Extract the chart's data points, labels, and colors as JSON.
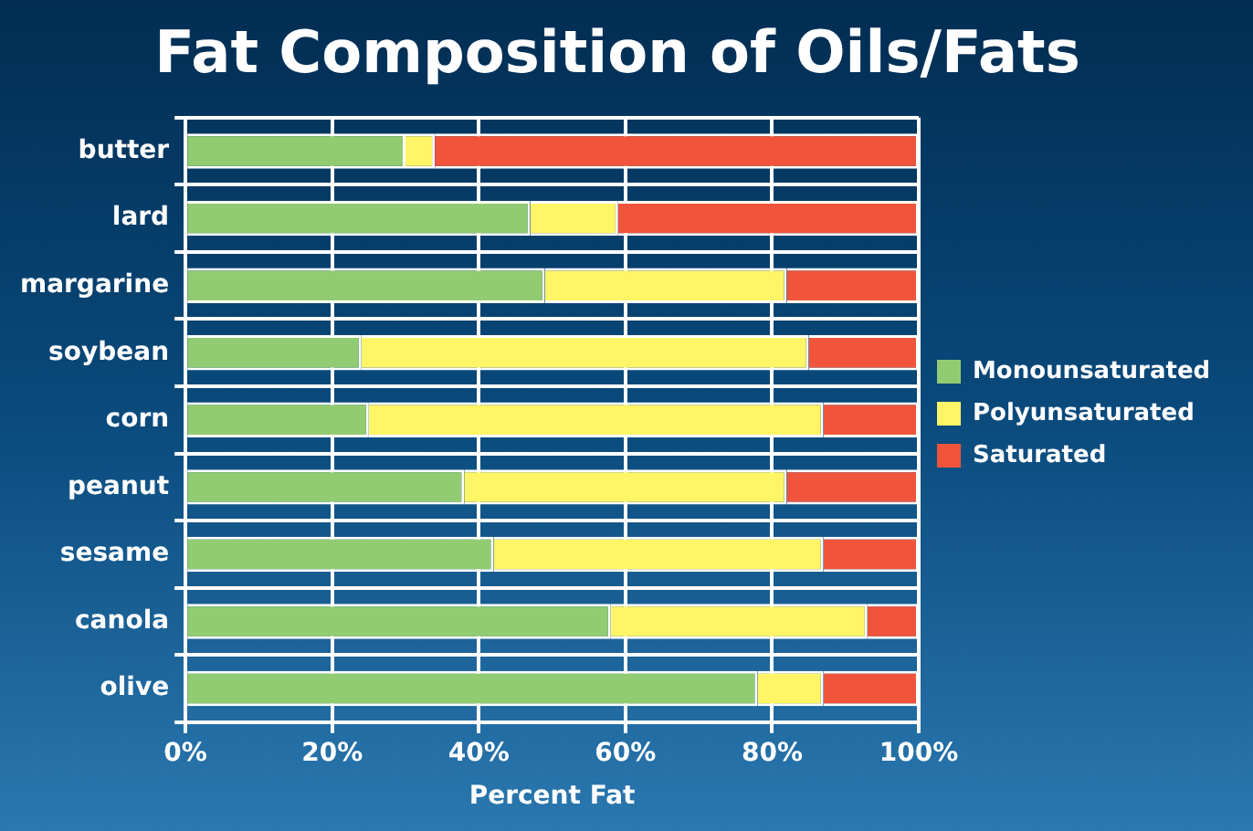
{
  "chart_data": {
    "type": "bar",
    "orientation": "horizontal",
    "stacked": true,
    "title": "Fat Composition of Oils/Fats",
    "xlabel": "Percent Fat",
    "categories": [
      "butter",
      "lard",
      "margarine",
      "soybean",
      "corn",
      "peanut",
      "sesame",
      "canola",
      "olive"
    ],
    "series": [
      {
        "name": "Monounsaturated",
        "color": "#92cc72",
        "values": [
          30,
          47,
          49,
          24,
          25,
          38,
          42,
          58,
          78
        ]
      },
      {
        "name": "Polyunsaturated",
        "color": "#fff566",
        "values": [
          4,
          12,
          33,
          61,
          62,
          44,
          45,
          35,
          9
        ]
      },
      {
        "name": "Saturated",
        "color": "#f0553c",
        "values": [
          66,
          41,
          18,
          15,
          13,
          18,
          13,
          7,
          13
        ]
      }
    ],
    "xlim": [
      0,
      100
    ],
    "xticks": [
      {
        "value": 0,
        "label": "0%"
      },
      {
        "value": 20,
        "label": "20%"
      },
      {
        "value": 40,
        "label": "40%"
      },
      {
        "value": 60,
        "label": "60%"
      },
      {
        "value": 80,
        "label": "80%"
      },
      {
        "value": 100,
        "label": "100%"
      }
    ],
    "grid": true,
    "legend": "right"
  }
}
